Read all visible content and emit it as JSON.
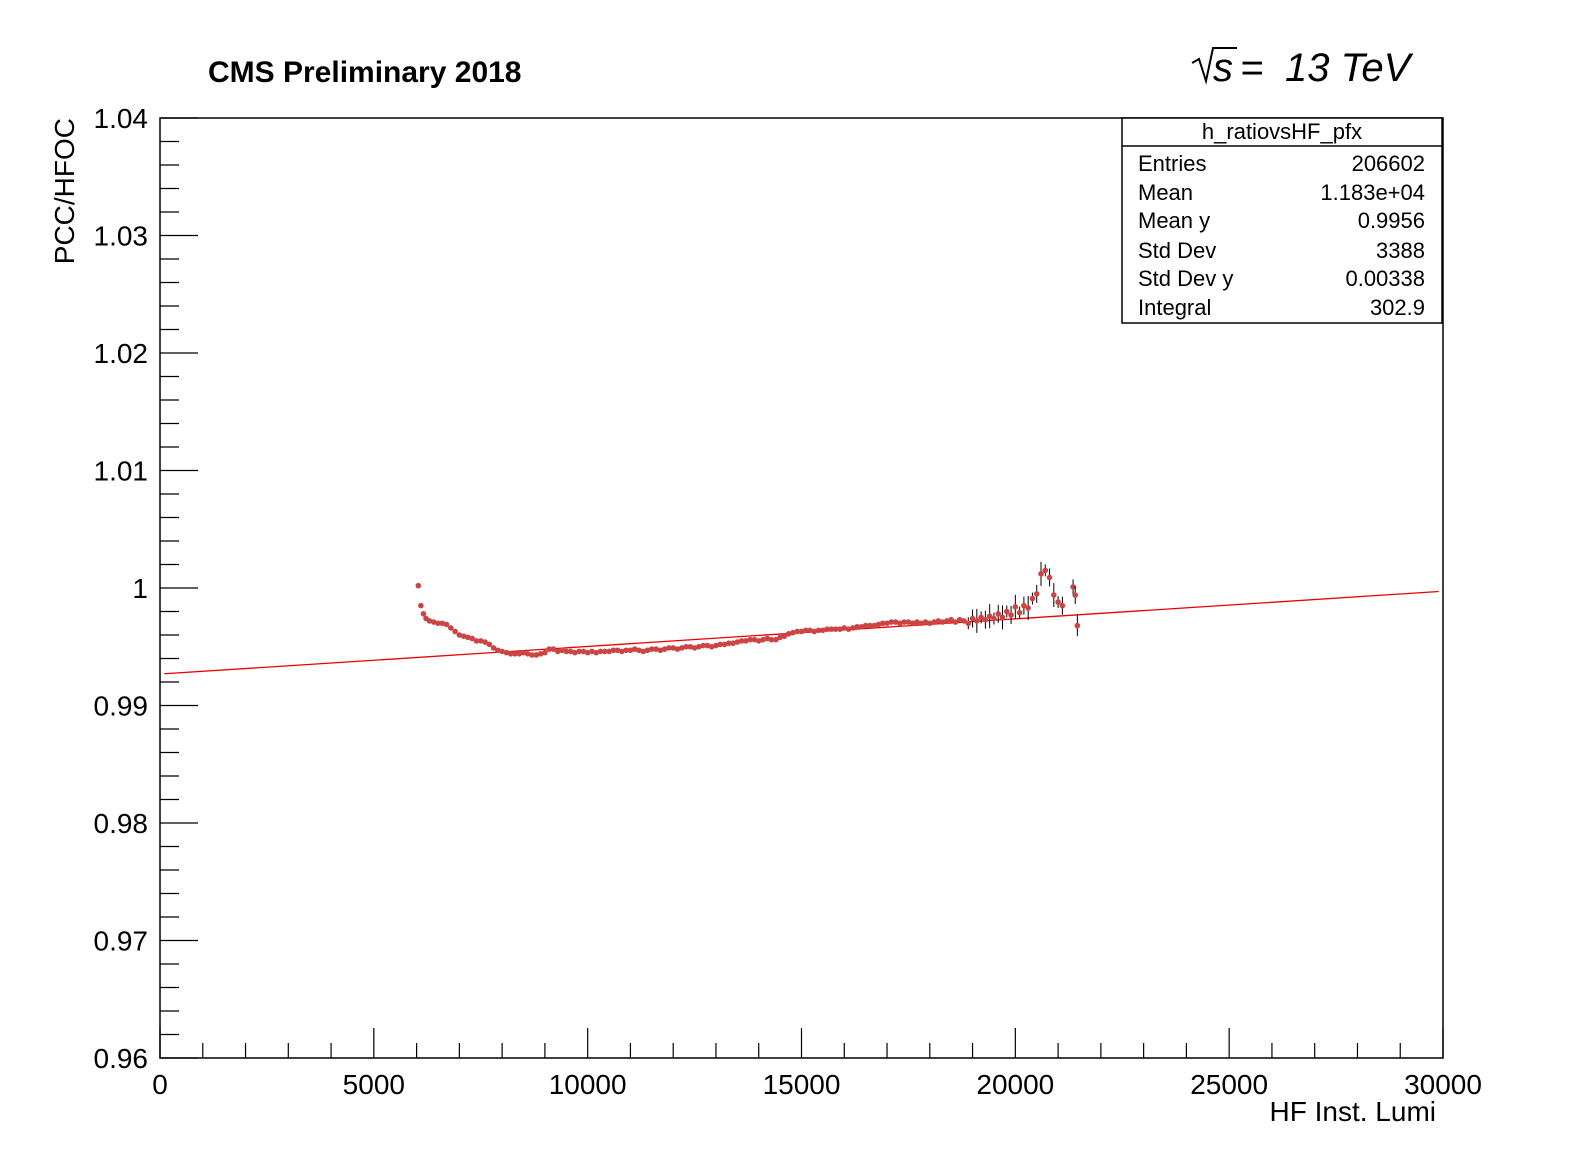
{
  "chart_data": {
    "type": "scatter",
    "title": "CMS Preliminary 2018",
    "energy_label": "13 TeV",
    "energy_prefix": "s",
    "xlabel": "HF Inst. Lumi",
    "ylabel": "PCC/HFOC",
    "xlim": [
      0,
      30000
    ],
    "ylim": [
      0.96,
      1.04
    ],
    "x_ticks": [
      "0",
      "5000",
      "10000",
      "15000",
      "20000",
      "25000",
      "30000"
    ],
    "y_ticks": [
      "0.96",
      "0.97",
      "0.98",
      "0.99",
      "1",
      "1.01",
      "1.02",
      "1.03",
      "1.04"
    ],
    "grid": false,
    "marker_color": "#cc4444",
    "fit_color": "#ee0000",
    "fit_line": {
      "x": [
        100,
        29900
      ],
      "y": [
        0.9927,
        0.9997
      ]
    },
    "series": [
      {
        "points": [
          [
            6040,
            1.0002
          ],
          [
            6100,
            0.9985
          ],
          [
            6160,
            0.9978
          ],
          [
            6220,
            0.9974
          ],
          [
            6300,
            0.9972
          ],
          [
            6400,
            0.9971
          ],
          [
            6500,
            0.997
          ],
          [
            6600,
            0.997
          ],
          [
            6700,
            0.9969
          ],
          [
            6800,
            0.9966
          ],
          [
            6900,
            0.9963
          ],
          [
            7000,
            0.996
          ],
          [
            7100,
            0.9959
          ],
          [
            7200,
            0.9958
          ],
          [
            7300,
            0.9957
          ],
          [
            7400,
            0.9955
          ],
          [
            7500,
            0.9955
          ],
          [
            7600,
            0.9954
          ],
          [
            7700,
            0.9952
          ],
          [
            7800,
            0.9949
          ],
          [
            7900,
            0.9947
          ],
          [
            8000,
            0.9946
          ],
          [
            8100,
            0.9945
          ],
          [
            8200,
            0.9944
          ],
          [
            8300,
            0.9944
          ],
          [
            8400,
            0.9944
          ],
          [
            8500,
            0.9945
          ],
          [
            8600,
            0.9944
          ],
          [
            8700,
            0.9943
          ],
          [
            8800,
            0.9943
          ],
          [
            8900,
            0.9944
          ],
          [
            9000,
            0.9945
          ],
          [
            9100,
            0.9948
          ],
          [
            9200,
            0.9948
          ],
          [
            9300,
            0.9946
          ],
          [
            9400,
            0.9947
          ],
          [
            9500,
            0.9946
          ],
          [
            9600,
            0.9946
          ],
          [
            9700,
            0.9945
          ],
          [
            9800,
            0.9946
          ],
          [
            9900,
            0.9946
          ],
          [
            10000,
            0.9945
          ],
          [
            10100,
            0.9946
          ],
          [
            10200,
            0.9945
          ],
          [
            10300,
            0.9946
          ],
          [
            10400,
            0.9946
          ],
          [
            10500,
            0.9946
          ],
          [
            10600,
            0.9947
          ],
          [
            10700,
            0.9947
          ],
          [
            10800,
            0.9946
          ],
          [
            10900,
            0.9947
          ],
          [
            11000,
            0.9947
          ],
          [
            11100,
            0.9948
          ],
          [
            11200,
            0.9947
          ],
          [
            11300,
            0.9946
          ],
          [
            11400,
            0.9947
          ],
          [
            11500,
            0.9948
          ],
          [
            11600,
            0.9948
          ],
          [
            11700,
            0.9947
          ],
          [
            11800,
            0.9948
          ],
          [
            11900,
            0.9949
          ],
          [
            12000,
            0.9949
          ],
          [
            12100,
            0.9948
          ],
          [
            12200,
            0.9949
          ],
          [
            12300,
            0.995
          ],
          [
            12400,
            0.995
          ],
          [
            12500,
            0.9949
          ],
          [
            12600,
            0.995
          ],
          [
            12700,
            0.9951
          ],
          [
            12800,
            0.9951
          ],
          [
            12900,
            0.995
          ],
          [
            13000,
            0.9951
          ],
          [
            13100,
            0.9952
          ],
          [
            13200,
            0.9952
          ],
          [
            13300,
            0.9953
          ],
          [
            13400,
            0.9953
          ],
          [
            13500,
            0.9954
          ],
          [
            13600,
            0.9955
          ],
          [
            13700,
            0.9955
          ],
          [
            13800,
            0.9956
          ],
          [
            13900,
            0.9956
          ],
          [
            14000,
            0.9955
          ],
          [
            14100,
            0.9956
          ],
          [
            14200,
            0.9957
          ],
          [
            14300,
            0.9956
          ],
          [
            14400,
            0.9956
          ],
          [
            14500,
            0.9958
          ],
          [
            14600,
            0.9959
          ],
          [
            14700,
            0.9961
          ],
          [
            14800,
            0.9962
          ],
          [
            14900,
            0.9963
          ],
          [
            15000,
            0.9963
          ],
          [
            15100,
            0.9964
          ],
          [
            15200,
            0.9964
          ],
          [
            15300,
            0.9963
          ],
          [
            15400,
            0.9964
          ],
          [
            15500,
            0.9964
          ],
          [
            15600,
            0.9965
          ],
          [
            15700,
            0.9965
          ],
          [
            15800,
            0.9965
          ],
          [
            15900,
            0.9965
          ],
          [
            16000,
            0.9966
          ],
          [
            16100,
            0.9965
          ],
          [
            16200,
            0.9966
          ],
          [
            16300,
            0.9967
          ],
          [
            16400,
            0.9967
          ],
          [
            16500,
            0.9968
          ],
          [
            16600,
            0.9968
          ],
          [
            16700,
            0.9968
          ],
          [
            16800,
            0.9969
          ],
          [
            16900,
            0.997
          ],
          [
            17000,
            0.997
          ],
          [
            17100,
            0.9971
          ],
          [
            17200,
            0.9971
          ],
          [
            17300,
            0.997
          ],
          [
            17400,
            0.9971
          ],
          [
            17500,
            0.9971
          ],
          [
            17600,
            0.997
          ],
          [
            17700,
            0.9971
          ],
          [
            17800,
            0.997
          ],
          [
            17900,
            0.9971
          ],
          [
            18000,
            0.997
          ],
          [
            18100,
            0.9971
          ],
          [
            18200,
            0.9972
          ],
          [
            18300,
            0.9971
          ],
          [
            18400,
            0.9972
          ],
          [
            18500,
            0.9973
          ],
          [
            18600,
            0.9971
          ],
          [
            18700,
            0.9973
          ],
          [
            18800,
            0.9972
          ],
          [
            18900,
            0.997
          ],
          [
            19000,
            0.9974
          ],
          [
            19100,
            0.9972
          ],
          [
            19200,
            0.9975
          ],
          [
            19300,
            0.9973
          ],
          [
            19400,
            0.9976
          ],
          [
            19500,
            0.9974
          ],
          [
            19600,
            0.9978
          ],
          [
            19700,
            0.9975
          ],
          [
            19800,
            0.998
          ],
          [
            19900,
            0.9977
          ],
          [
            20000,
            0.9984
          ],
          [
            20100,
            0.9979
          ],
          [
            20200,
            0.9985
          ],
          [
            20300,
            0.9983
          ],
          [
            20400,
            0.9991
          ],
          [
            20500,
            0.9995
          ],
          [
            20600,
            1.0012
          ],
          [
            20700,
            1.0015
          ],
          [
            20800,
            1.0009
          ],
          [
            20900,
            0.9994
          ],
          [
            21000,
            0.9988
          ],
          [
            21100,
            0.9985
          ],
          [
            21350,
            1.0001
          ],
          [
            21400,
            0.9994
          ],
          [
            21450,
            0.9968
          ]
        ]
      }
    ]
  },
  "stats_box": {
    "name": "h_ratiovsHF_pfx",
    "rows": [
      {
        "label": "Entries",
        "value": "206602"
      },
      {
        "label": "Mean",
        "value": "1.183e+04"
      },
      {
        "label": "Mean y",
        "value": "0.9956"
      },
      {
        "label": "Std Dev",
        "value": "3388"
      },
      {
        "label": "Std Dev y",
        "value": "0.00338"
      },
      {
        "label": "Integral",
        "value": "302.9"
      }
    ]
  }
}
